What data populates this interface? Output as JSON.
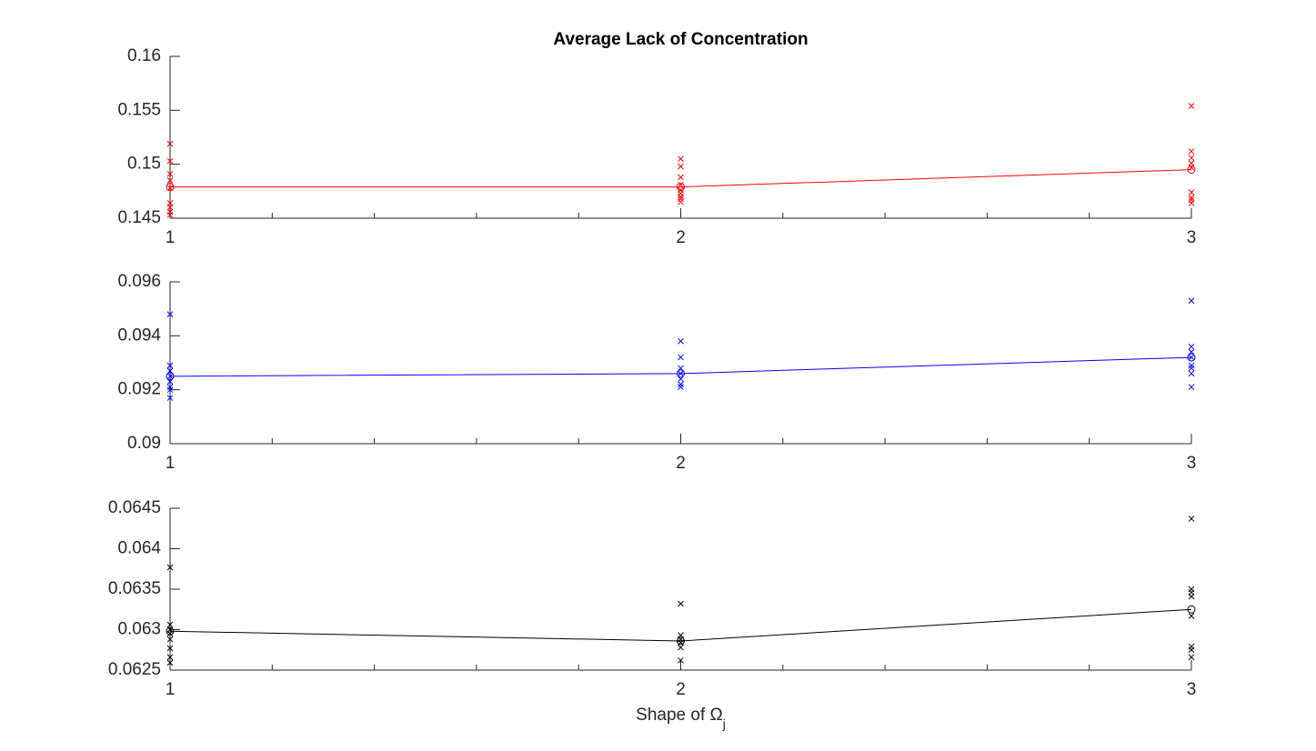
{
  "chart_data": [
    {
      "type": "line",
      "title": "Average Lack of Concentration",
      "xlim": [
        1,
        3
      ],
      "xticks": [
        1,
        2,
        3
      ],
      "xminorticks": [
        1.2,
        1.4,
        1.6,
        1.8,
        2.2,
        2.4,
        2.6,
        2.8
      ],
      "ylim": [
        0.145,
        0.16
      ],
      "yticks": [
        0.145,
        0.15,
        0.155,
        0.16
      ],
      "series": [
        {
          "color": "#ff0000",
          "marker": "o",
          "line": true,
          "x": [
            1,
            2,
            3
          ],
          "values": [
            0.1479,
            0.1479,
            0.1495
          ]
        },
        {
          "color": "#ff0000",
          "marker": "x",
          "line": false,
          "x": [
            1,
            1,
            1,
            1,
            1,
            1,
            1,
            1,
            1,
            2,
            2,
            2,
            2,
            2,
            2,
            2,
            2,
            2,
            3,
            3,
            3,
            3,
            3,
            3,
            3,
            3,
            3
          ],
          "values": [
            0.1519,
            0.1503,
            0.1491,
            0.1485,
            0.1478,
            0.1464,
            0.146,
            0.1456,
            0.1453,
            0.1505,
            0.1498,
            0.1488,
            0.1481,
            0.1476,
            0.1473,
            0.147,
            0.1468,
            0.1465,
            0.1554,
            0.1512,
            0.1506,
            0.1501,
            0.1497,
            0.1474,
            0.1469,
            0.1467,
            0.1464
          ]
        }
      ]
    },
    {
      "type": "line",
      "xlim": [
        1,
        3
      ],
      "xticks": [
        1,
        2,
        3
      ],
      "xminorticks": [
        1.2,
        1.4,
        1.6,
        1.8,
        2.2,
        2.4,
        2.6,
        2.8
      ],
      "ylim": [
        0.09,
        0.096
      ],
      "yticks": [
        0.09,
        0.092,
        0.094,
        0.096
      ],
      "series": [
        {
          "color": "#0000ff",
          "marker": "o",
          "line": true,
          "x": [
            1,
            2,
            3
          ],
          "values": [
            0.0925,
            0.0926,
            0.0932
          ]
        },
        {
          "color": "#0000ff",
          "marker": "x",
          "line": false,
          "x": [
            1,
            1,
            1,
            1,
            1,
            1,
            1,
            1,
            2,
            2,
            2,
            2,
            2,
            2,
            2,
            3,
            3,
            3,
            3,
            3,
            3,
            3,
            3
          ],
          "values": [
            0.0948,
            0.0929,
            0.0927,
            0.0925,
            0.0923,
            0.0921,
            0.092,
            0.0917,
            0.0938,
            0.0932,
            0.0928,
            0.0926,
            0.0924,
            0.0922,
            0.0921,
            0.0953,
            0.0936,
            0.0934,
            0.0932,
            0.0929,
            0.0928,
            0.0926,
            0.0921
          ]
        }
      ]
    },
    {
      "type": "line",
      "xlabel": {
        "text": "Shape of Ω",
        "subscript": "j"
      },
      "xlim": [
        1,
        3
      ],
      "xticks": [
        1,
        2,
        3
      ],
      "xminorticks": [
        1.2,
        1.4,
        1.6,
        1.8,
        2.2,
        2.4,
        2.6,
        2.8
      ],
      "ylim": [
        0.0625,
        0.0645
      ],
      "yticks": [
        0.0625,
        0.063,
        0.0635,
        0.064,
        0.0645
      ],
      "series": [
        {
          "color": "#000000",
          "marker": "o",
          "line": true,
          "x": [
            1,
            2,
            3
          ],
          "values": [
            0.06298,
            0.06286,
            0.06325
          ]
        },
        {
          "color": "#000000",
          "marker": "x",
          "line": false,
          "x": [
            1,
            1,
            1,
            1,
            1,
            1,
            1,
            1,
            2,
            2,
            2,
            2,
            2,
            2,
            3,
            3,
            3,
            3,
            3,
            3,
            3,
            3
          ],
          "values": [
            0.06377,
            0.06306,
            0.063,
            0.06295,
            0.06288,
            0.06277,
            0.06266,
            0.06259,
            0.06332,
            0.06293,
            0.06288,
            0.06284,
            0.06278,
            0.06262,
            0.06437,
            0.0635,
            0.06346,
            0.06341,
            0.06317,
            0.06279,
            0.06275,
            0.06266
          ]
        }
      ]
    }
  ]
}
